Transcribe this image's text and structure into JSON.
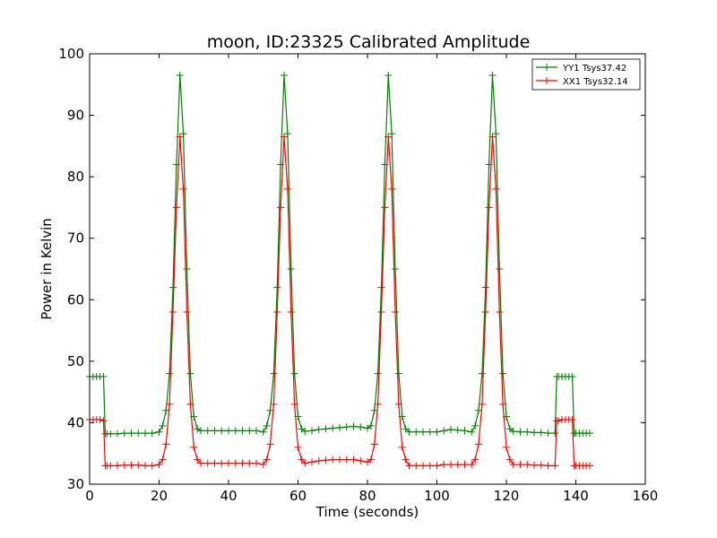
{
  "chart_data": {
    "type": "line",
    "title": "moon, ID:23325 Calibrated Amplitude",
    "xlabel": "Time (seconds)",
    "ylabel": "Power in Kelvin",
    "xlim": [
      0,
      160
    ],
    "ylim": [
      30,
      100
    ],
    "xticks": [
      "0",
      "20",
      "40",
      "60",
      "80",
      "100",
      "120",
      "140",
      "160"
    ],
    "yticks": [
      "30",
      "40",
      "50",
      "60",
      "70",
      "80",
      "90",
      "100"
    ],
    "grid": false,
    "legend_position": "top-right",
    "marker": "plus",
    "series": [
      {
        "name": "YY1 Tsys37.42",
        "color": "#008000",
        "x": [
          0,
          1,
          2,
          3,
          4,
          4.5,
          5,
          6,
          8,
          10,
          12,
          14,
          16,
          18,
          20,
          21,
          22,
          23,
          24,
          25,
          26,
          27,
          28,
          29,
          30,
          31,
          32,
          34,
          36,
          38,
          40,
          42,
          44,
          46,
          48,
          50,
          51,
          52,
          53,
          54,
          55,
          56,
          57,
          58,
          59,
          60,
          61,
          62,
          64,
          66,
          68,
          70,
          72,
          74,
          76,
          78,
          80,
          81,
          82,
          83,
          84,
          85,
          86,
          87,
          88,
          89,
          90,
          91,
          92,
          94,
          96,
          98,
          100,
          102,
          104,
          106,
          108,
          110,
          111,
          112,
          113,
          114,
          115,
          116,
          117,
          118,
          119,
          120,
          121,
          122,
          124,
          126,
          128,
          130,
          132,
          134,
          134.5,
          135,
          136,
          137,
          138,
          139,
          139.5,
          140,
          141,
          142,
          143,
          144
        ],
        "y": [
          47.5,
          47.5,
          47.5,
          47.5,
          47.5,
          38.2,
          38.2,
          38.2,
          38.2,
          38.3,
          38.3,
          38.3,
          38.3,
          38.3,
          38.5,
          39.5,
          42,
          48,
          62,
          82,
          96.5,
          87,
          65,
          48,
          41,
          39,
          38.7,
          38.7,
          38.7,
          38.7,
          38.7,
          38.7,
          38.7,
          38.7,
          38.7,
          38.5,
          39.5,
          42,
          48,
          62,
          82,
          96.5,
          87,
          65,
          48,
          41,
          39,
          38.6,
          38.7,
          38.9,
          39,
          39.1,
          39.2,
          39.3,
          39.4,
          39.3,
          39.1,
          39.5,
          42,
          48,
          62,
          82,
          96.5,
          87,
          65,
          48,
          41,
          39,
          38.5,
          38.5,
          38.5,
          38.5,
          38.5,
          38.7,
          38.9,
          38.8,
          38.7,
          38.5,
          39.5,
          42,
          48,
          62,
          82,
          96.5,
          87,
          65,
          48,
          41,
          39,
          38.6,
          38.5,
          38.5,
          38.4,
          38.4,
          38.3,
          38.3,
          47.5,
          47.5,
          47.5,
          47.5,
          47.5,
          47.5,
          38.3,
          38.3,
          38.3,
          38.3,
          38.3,
          38.3
        ]
      },
      {
        "name": "XX1 Tsys32.14",
        "color": "#ff0000",
        "x": [
          0,
          1,
          2,
          3,
          4,
          4.5,
          5,
          6,
          8,
          10,
          12,
          14,
          16,
          18,
          20,
          21,
          22,
          23,
          24,
          25,
          26,
          27,
          28,
          29,
          30,
          31,
          32,
          34,
          36,
          38,
          40,
          42,
          44,
          46,
          48,
          50,
          51,
          52,
          53,
          54,
          55,
          56,
          57,
          58,
          59,
          60,
          61,
          62,
          64,
          66,
          68,
          70,
          72,
          74,
          76,
          78,
          80,
          81,
          82,
          83,
          84,
          85,
          86,
          87,
          88,
          89,
          90,
          91,
          92,
          94,
          96,
          98,
          100,
          102,
          104,
          106,
          108,
          110,
          111,
          112,
          113,
          114,
          115,
          116,
          117,
          118,
          119,
          120,
          121,
          122,
          124,
          126,
          128,
          130,
          132,
          134,
          134.5,
          135,
          136,
          137,
          138,
          139,
          139.5,
          140,
          141,
          142,
          143,
          144
        ],
        "y": [
          40.5,
          40.5,
          40.5,
          40.5,
          40.3,
          33,
          33,
          33,
          33,
          33.1,
          33.1,
          33.1,
          33,
          33,
          33.2,
          34,
          36.5,
          43,
          58,
          75,
          86.5,
          78,
          58,
          43,
          36,
          34,
          33.4,
          33.4,
          33.4,
          33.4,
          33.4,
          33.4,
          33.4,
          33.4,
          33.4,
          33.2,
          34,
          36.5,
          43,
          58,
          75,
          86.5,
          78,
          58,
          43,
          36,
          34,
          33.4,
          33.6,
          33.8,
          33.9,
          34,
          34,
          34,
          34,
          33.8,
          33.6,
          34,
          36.5,
          43,
          58,
          75,
          86.5,
          78,
          58,
          43,
          36,
          34,
          33,
          33,
          33,
          33,
          33,
          33.2,
          33.2,
          33.2,
          33.2,
          33.2,
          34,
          36.5,
          43,
          58,
          75,
          86.5,
          78,
          58,
          43,
          36,
          34,
          33.2,
          33.2,
          33.2,
          33.1,
          33.1,
          33,
          33,
          40.3,
          40.3,
          40.5,
          40.5,
          40.5,
          40.5,
          33,
          33,
          33,
          33,
          33,
          33
        ]
      }
    ]
  }
}
